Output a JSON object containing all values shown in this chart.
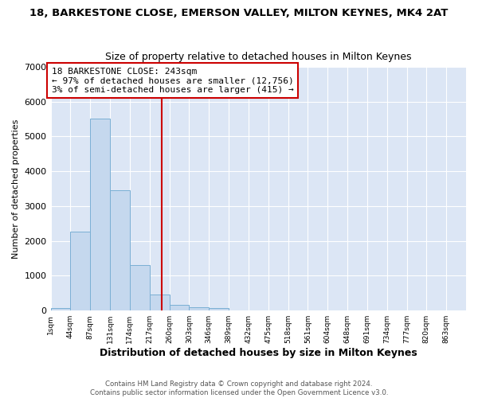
{
  "title": "18, BARKESTONE CLOSE, EMERSON VALLEY, MILTON KEYNES, MK4 2AT",
  "subtitle": "Size of property relative to detached houses in Milton Keynes",
  "xlabel": "Distribution of detached houses by size in Milton Keynes",
  "ylabel": "Number of detached properties",
  "bar_color": "#c5d8ee",
  "bar_edge_color": "#7aafd4",
  "background_color": "#dce6f5",
  "grid_color": "#ffffff",
  "vline_x": 243,
  "vline_color": "#cc0000",
  "annotation_line1": "18 BARKESTONE CLOSE: 243sqm",
  "annotation_line2": "← 97% of detached houses are smaller (12,756)",
  "annotation_line3": "3% of semi-detached houses are larger (415) →",
  "annotation_box_color": "#cc0000",
  "bin_edges": [
    1,
    44,
    87,
    130,
    173,
    216,
    259,
    302,
    345,
    388,
    431,
    474,
    517,
    560,
    603,
    646,
    689,
    732,
    775,
    818,
    861,
    904
  ],
  "bin_labels": [
    "1sqm",
    "44sqm",
    "87sqm",
    "131sqm",
    "174sqm",
    "217sqm",
    "260sqm",
    "303sqm",
    "346sqm",
    "389sqm",
    "432sqm",
    "475sqm",
    "518sqm",
    "561sqm",
    "604sqm",
    "648sqm",
    "691sqm",
    "734sqm",
    "777sqm",
    "820sqm",
    "863sqm"
  ],
  "bar_heights": [
    75,
    2270,
    5500,
    3450,
    1310,
    470,
    165,
    90,
    70,
    0,
    0,
    0,
    0,
    0,
    0,
    0,
    0,
    0,
    0,
    0,
    0
  ],
  "ylim": [
    0,
    7000
  ],
  "yticks": [
    0,
    1000,
    2000,
    3000,
    4000,
    5000,
    6000,
    7000
  ],
  "figsize": [
    6.0,
    5.0
  ],
  "dpi": 100,
  "fig_bg": "#ffffff",
  "footer_text1": "Contains HM Land Registry data © Crown copyright and database right 2024.",
  "footer_text2": "Contains public sector information licensed under the Open Government Licence v3.0."
}
